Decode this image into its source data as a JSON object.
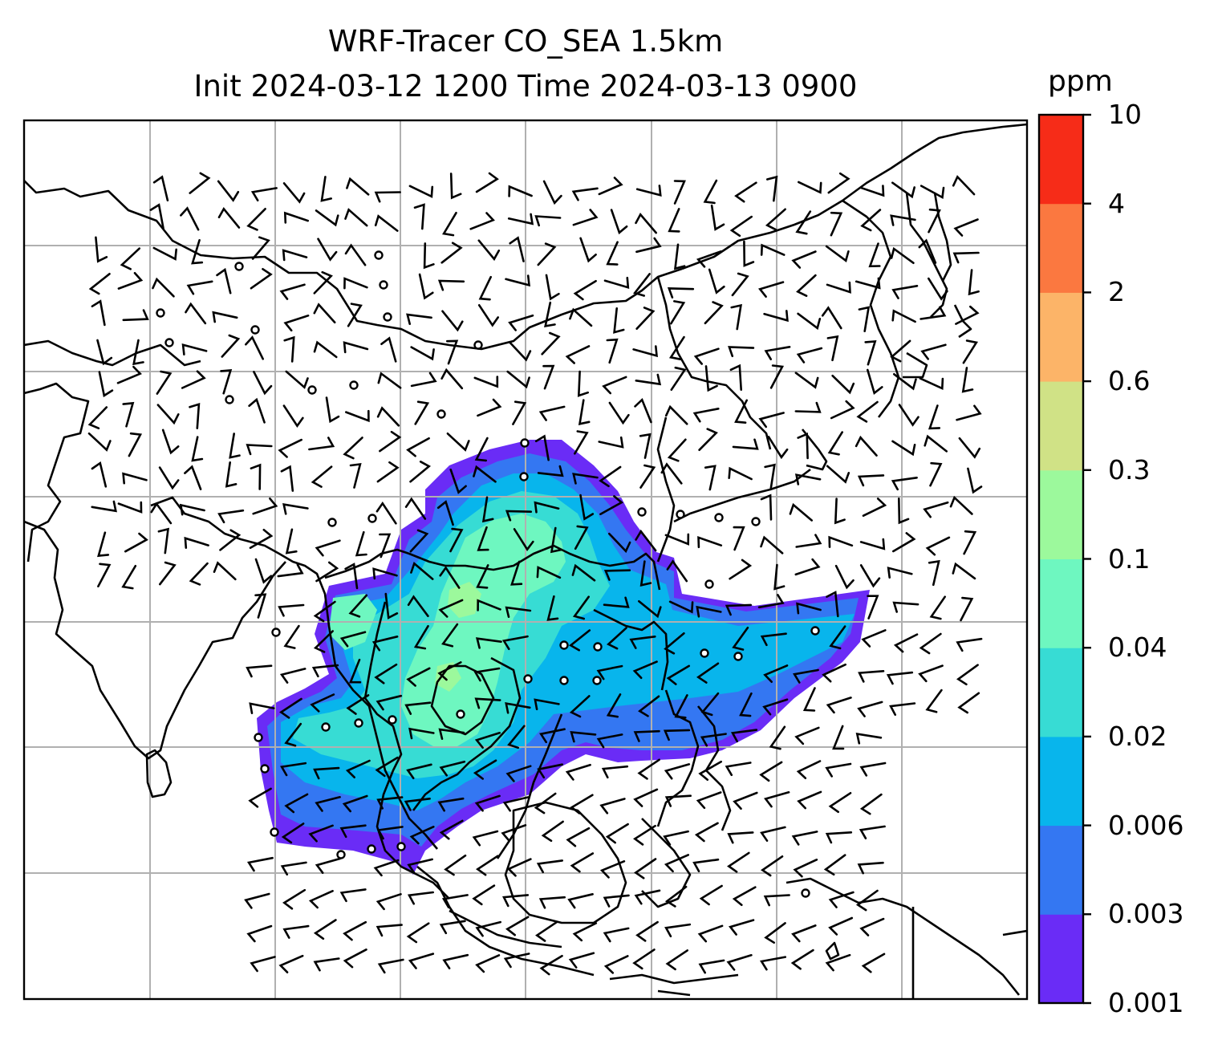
{
  "title": {
    "line1": "WRF-Tracer CO_SEA 1.5km",
    "line2": "Init 2024-03-12 1200 Time 2024-03-13 0900"
  },
  "colorbar": {
    "unit": "ppm",
    "levels": [
      "0.001",
      "0.003",
      "0.006",
      "0.02",
      "0.04",
      "0.1",
      "0.3",
      "0.6",
      "2",
      "4",
      "10"
    ],
    "colors": [
      "#6a2cf6",
      "#3477f2",
      "#08b5ec",
      "#37dcd4",
      "#6ef7c0",
      "#9cf99c",
      "#d0e286",
      "#fcb468",
      "#fb7840",
      "#f62c18"
    ]
  },
  "chart_data": {
    "type": "heatmap",
    "variable": "CO tracer concentration",
    "unit": "ppm",
    "contour_levels": [
      0.001,
      0.003,
      0.006,
      0.02,
      0.04,
      0.1,
      0.3,
      0.6,
      2,
      4,
      10
    ],
    "overlays": [
      "coastlines",
      "country borders",
      "lat/lon gridlines",
      "wind barbs"
    ],
    "grid": true,
    "colorbar": "right"
  }
}
